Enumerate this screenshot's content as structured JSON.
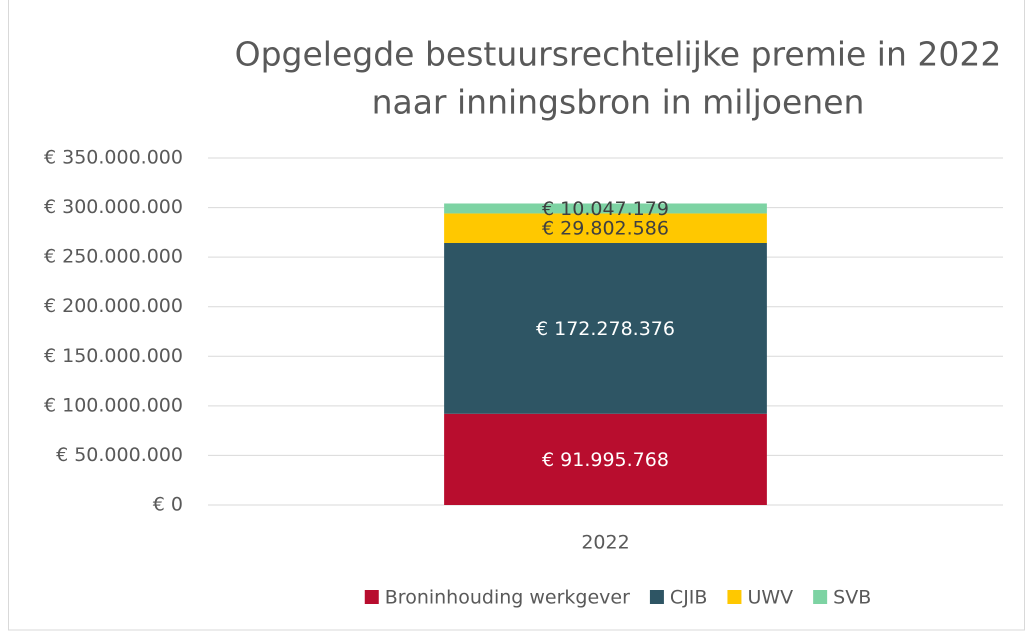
{
  "chart_data": {
    "type": "stacked_bar",
    "title": [
      "Opgelegde bestuursrechtelijke premie in 2022",
      "naar inningsbron in miljoenen"
    ],
    "categories": [
      "2022"
    ],
    "series": [
      {
        "name": "Broninhouding werkgever",
        "color": "#b80d2e",
        "values": [
          91995768
        ],
        "value_labels": [
          "€ 91.995.768"
        ]
      },
      {
        "name": "CJIB",
        "color": "#2e5564",
        "values": [
          172278376
        ],
        "value_labels": [
          "€ 172.278.376"
        ]
      },
      {
        "name": "UWV",
        "color": "#ffc800",
        "values": [
          29802586
        ],
        "value_labels": [
          "€ 29.802.586"
        ]
      },
      {
        "name": "SVB",
        "color": "#7dd3a3",
        "values": [
          10047179
        ],
        "value_labels": [
          "€ 10.047.179"
        ]
      }
    ],
    "ylim": [
      0,
      350000000
    ],
    "yticks": [
      {
        "value": 0,
        "label": "€ 0"
      },
      {
        "value": 50000000,
        "label": "€ 50.000.000"
      },
      {
        "value": 100000000,
        "label": "€ 100.000.000"
      },
      {
        "value": 150000000,
        "label": "€ 150.000.000"
      },
      {
        "value": 200000000,
        "label": "€ 200.000.000"
      },
      {
        "value": 250000000,
        "label": "€ 250.000.000"
      },
      {
        "value": 300000000,
        "label": "€ 300.000.000"
      },
      {
        "value": 350000000,
        "label": "€ 350.000.000"
      }
    ],
    "grid": true,
    "legend": "bottom"
  }
}
